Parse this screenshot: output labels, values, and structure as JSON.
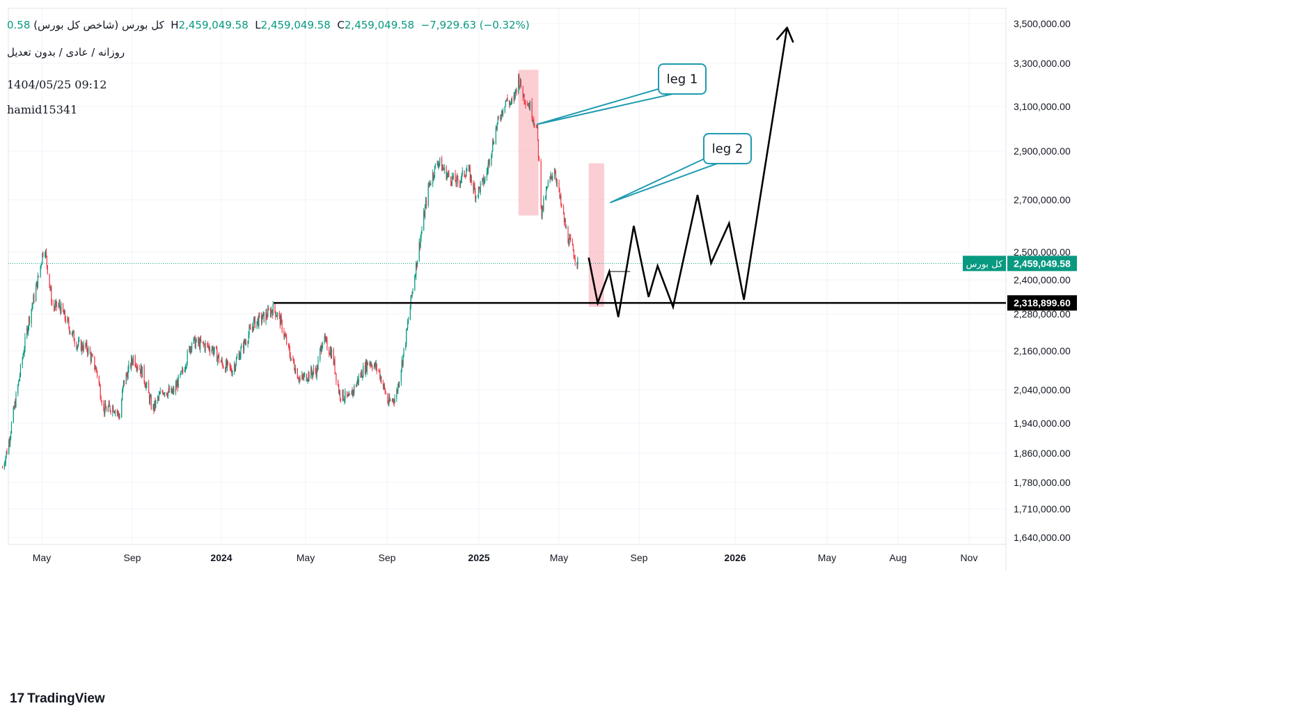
{
  "header": {
    "title": "کل بورس (شاخص کل بورس)",
    "open_label": "",
    "open_value": "0.58",
    "high_label": "H",
    "high_value": "2,459,049.58",
    "low_label": "L",
    "low_value": "2,459,049.58",
    "close_label": "C",
    "close_value": "2,459,049.58",
    "change": "−7,929.63 (−0.32%)",
    "settings": "روزانه / عادی / بدون تعدیل",
    "datetime": "1404/05/25 09:12",
    "author": "hamid15341"
  },
  "brand": {
    "name": "TradingView",
    "logo": "tradingview-logo"
  },
  "colors": {
    "up": "#089981",
    "down": "#F23645",
    "grid": "#F0F3FA",
    "zone": "#F7A5AE",
    "callout": "#1E9BB0",
    "line": "#000000"
  },
  "chart_data": {
    "type": "candlestick",
    "price_axis_ticks": [
      "3,500,000.00",
      "3,300,000.00",
      "3,100,000.00",
      "2,900,000.00",
      "2,700,000.00",
      "2,500,000.00",
      "2,400,000.00",
      "2,280,000.00",
      "2,160,000.00",
      "2,040,000.00",
      "1,940,000.00",
      "1,860,000.00",
      "1,780,000.00",
      "1,710,000.00",
      "1,640,000.00"
    ],
    "time_axis_ticks": [
      "May",
      "Sep",
      "2024",
      "May",
      "Sep",
      "2025",
      "May",
      "Sep",
      "2026",
      "May",
      "Aug",
      "Nov"
    ],
    "time_axis_bold": [
      false,
      false,
      true,
      false,
      false,
      true,
      false,
      false,
      true,
      false,
      false,
      false
    ],
    "last_price": {
      "label": "کل بورس",
      "value": "2,459,049.58"
    },
    "support_level": {
      "value": "2,318,899.60"
    },
    "close_path": [
      [
        "2023-03-01",
        1820000
      ],
      [
        "2023-03-10",
        1880000
      ],
      [
        "2023-03-25",
        2050000
      ],
      [
        "2023-04-10",
        2250000
      ],
      [
        "2023-04-25",
        2400000
      ],
      [
        "2023-05-05",
        2530000
      ],
      [
        "2023-05-10",
        2440000
      ],
      [
        "2023-05-18",
        2300000
      ],
      [
        "2023-05-28",
        2310000
      ],
      [
        "2023-06-10",
        2250000
      ],
      [
        "2023-06-25",
        2180000
      ],
      [
        "2023-07-10",
        2170000
      ],
      [
        "2023-07-25",
        2100000
      ],
      [
        "2023-08-05",
        1980000
      ],
      [
        "2023-08-20",
        1990000
      ],
      [
        "2023-08-30",
        1960000
      ],
      [
        "2023-09-05",
        2060000
      ],
      [
        "2023-09-20",
        2140000
      ],
      [
        "2023-10-05",
        2090000
      ],
      [
        "2023-10-20",
        1980000
      ],
      [
        "2023-11-05",
        2040000
      ],
      [
        "2023-11-20",
        2030000
      ],
      [
        "2023-12-05",
        2090000
      ],
      [
        "2023-12-20",
        2190000
      ],
      [
        "2024-01-05",
        2180000
      ],
      [
        "2024-01-20",
        2170000
      ],
      [
        "2024-02-05",
        2120000
      ],
      [
        "2024-02-20",
        2100000
      ],
      [
        "2024-03-05",
        2160000
      ],
      [
        "2024-03-25",
        2250000
      ],
      [
        "2024-04-10",
        2270000
      ],
      [
        "2024-04-25",
        2300000
      ],
      [
        "2024-05-05",
        2260000
      ],
      [
        "2024-05-20",
        2150000
      ],
      [
        "2024-06-05",
        2070000
      ],
      [
        "2024-06-20",
        2090000
      ],
      [
        "2024-07-01",
        2100000
      ],
      [
        "2024-07-10",
        2200000
      ],
      [
        "2024-07-25",
        2150000
      ],
      [
        "2024-08-05",
        2030000
      ],
      [
        "2024-08-20",
        2010000
      ],
      [
        "2024-09-05",
        2080000
      ],
      [
        "2024-09-20",
        2130000
      ],
      [
        "2024-10-05",
        2100000
      ],
      [
        "2024-10-20",
        2000000
      ],
      [
        "2024-11-01",
        2020000
      ],
      [
        "2024-11-15",
        2180000
      ],
      [
        "2024-11-28",
        2390000
      ],
      [
        "2024-12-10",
        2570000
      ],
      [
        "2024-12-22",
        2760000
      ],
      [
        "2025-01-05",
        2860000
      ],
      [
        "2025-01-20",
        2800000
      ],
      [
        "2025-02-05",
        2770000
      ],
      [
        "2025-02-20",
        2830000
      ],
      [
        "2025-03-05",
        2720000
      ],
      [
        "2025-03-20",
        2790000
      ],
      [
        "2025-04-05",
        3000000
      ],
      [
        "2025-04-20",
        3130000
      ],
      [
        "2025-05-01",
        3110000
      ],
      [
        "2025-05-10",
        3230000
      ],
      [
        "2025-05-18",
        3150000
      ],
      [
        "2025-05-28",
        3100000
      ],
      [
        "2025-06-08",
        2990000
      ],
      [
        "2025-06-15",
        2650000
      ],
      [
        "2025-06-25",
        2760000
      ],
      [
        "2025-07-05",
        2830000
      ],
      [
        "2025-07-15",
        2680000
      ],
      [
        "2025-07-25",
        2560000
      ],
      [
        "2025-08-10",
        2460000
      ]
    ],
    "projection_path": [
      [
        "2025-08-27",
        2480000
      ],
      [
        "2025-09-10",
        2318900
      ],
      [
        "2025-09-28",
        2430000
      ],
      [
        "2025-10-12",
        2270000
      ],
      [
        "2025-11-05",
        2600000
      ],
      [
        "2025-11-28",
        2340000
      ],
      [
        "2025-12-12",
        2450000
      ],
      [
        "2026-01-05",
        2305000
      ],
      [
        "2026-02-12",
        2720000
      ],
      [
        "2026-03-05",
        2460000
      ],
      [
        "2026-04-02",
        2610000
      ],
      [
        "2026-04-25",
        2330000
      ],
      [
        "2026-07-01",
        3480000
      ]
    ],
    "zones": [
      {
        "from": "2025-05-10",
        "to": "2025-06-10",
        "top": 3270000,
        "bottom": 2640000
      },
      {
        "from": "2025-08-27",
        "to": "2025-09-20",
        "top": 2850000,
        "bottom": 2305000
      }
    ],
    "annotations": [
      {
        "text": "leg 1",
        "date": "2025-06-08",
        "price": 3020000
      },
      {
        "text": "leg 2",
        "date": "2025-09-30",
        "price": 2690000
      }
    ]
  }
}
